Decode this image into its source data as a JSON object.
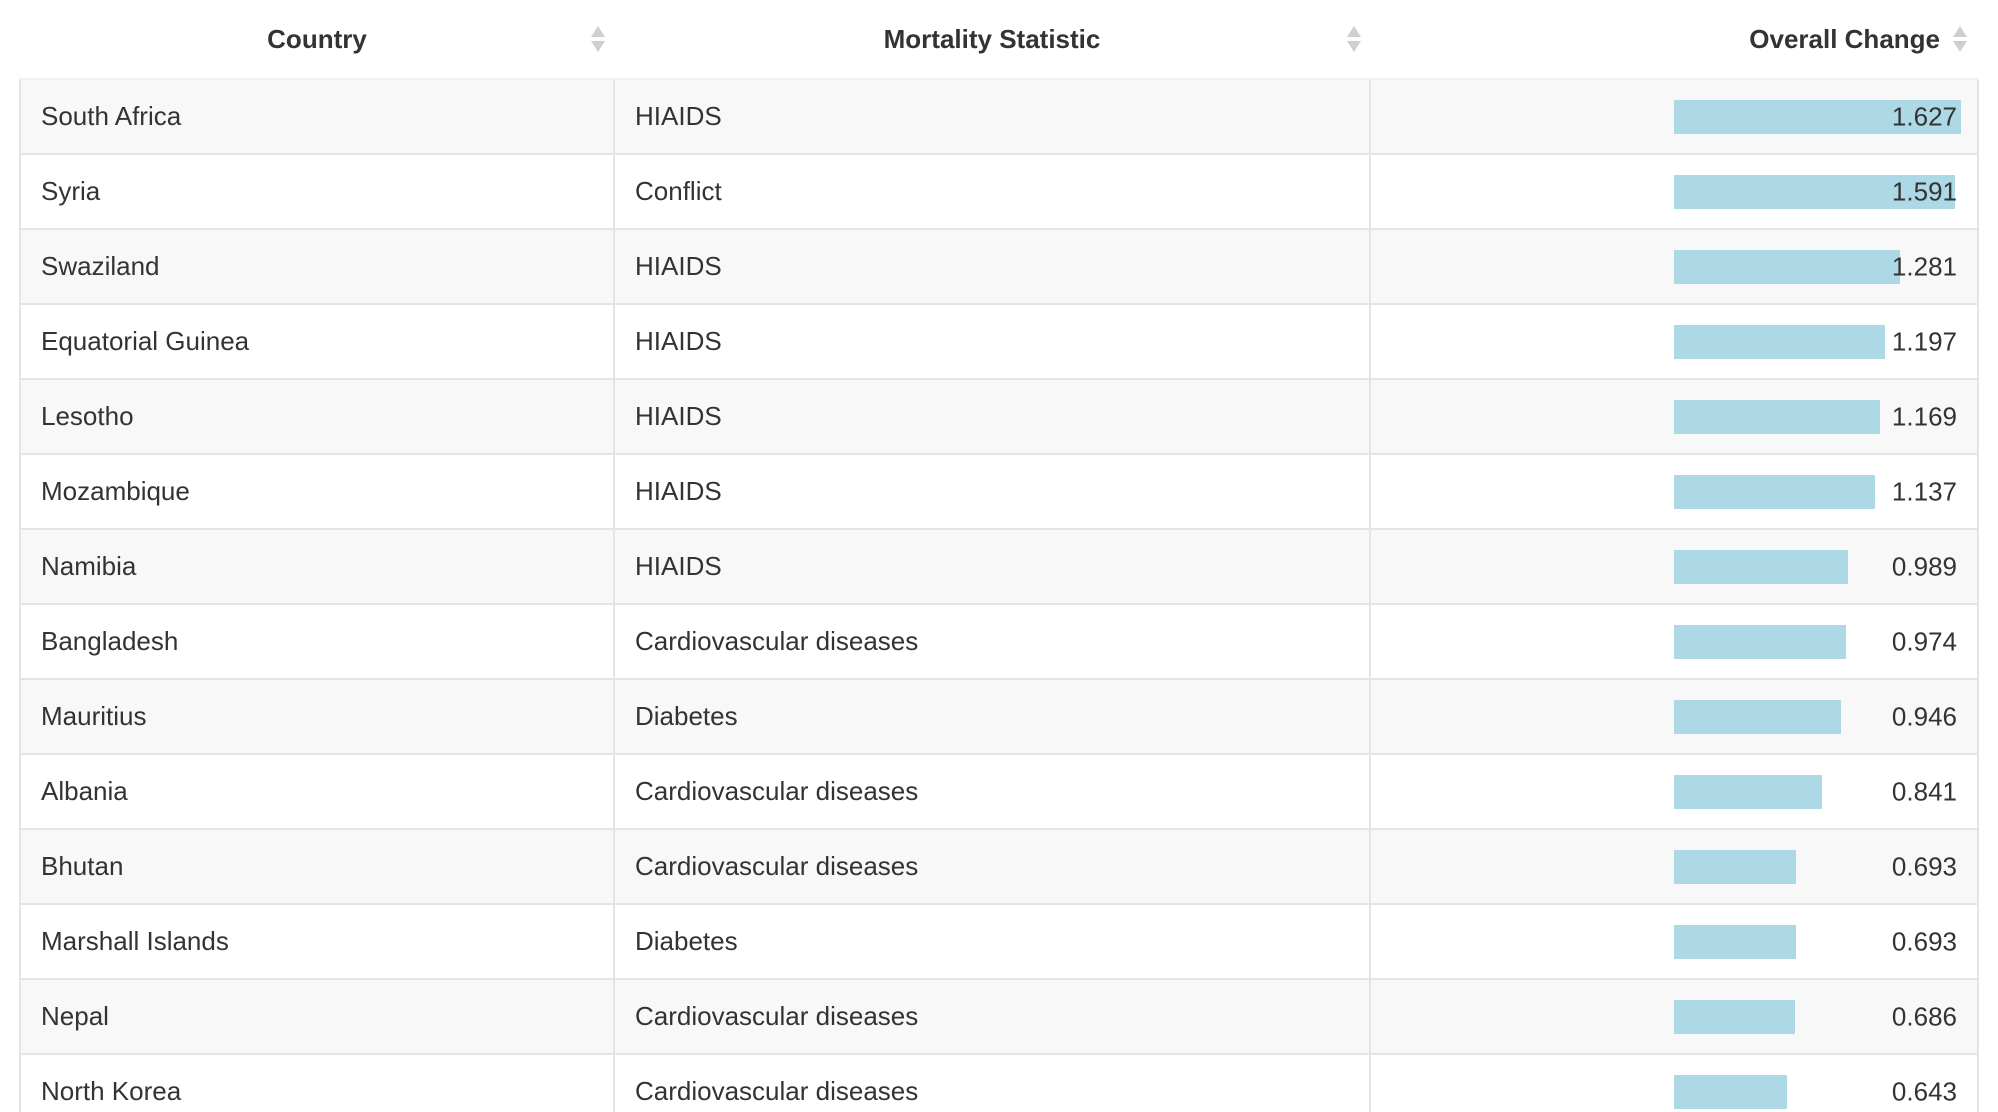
{
  "table": {
    "columns": [
      {
        "label": "Country"
      },
      {
        "label": "Mortality Statistic"
      },
      {
        "label": "Overall Change"
      }
    ],
    "bar_color": "#add8e6",
    "bar_max": 1.627,
    "rows": [
      {
        "country": "South Africa",
        "statistic": "HIAIDS",
        "change": "1.627"
      },
      {
        "country": "Syria",
        "statistic": "Conflict",
        "change": "1.591"
      },
      {
        "country": "Swaziland",
        "statistic": "HIAIDS",
        "change": "1.281"
      },
      {
        "country": "Equatorial Guinea",
        "statistic": "HIAIDS",
        "change": "1.197"
      },
      {
        "country": "Lesotho",
        "statistic": "HIAIDS",
        "change": "1.169"
      },
      {
        "country": "Mozambique",
        "statistic": "HIAIDS",
        "change": "1.137"
      },
      {
        "country": "Namibia",
        "statistic": "HIAIDS",
        "change": "0.989"
      },
      {
        "country": "Bangladesh",
        "statistic": "Cardiovascular diseases",
        "change": "0.974"
      },
      {
        "country": "Mauritius",
        "statistic": "Diabetes",
        "change": "0.946"
      },
      {
        "country": "Albania",
        "statistic": "Cardiovascular diseases",
        "change": "0.841"
      },
      {
        "country": "Bhutan",
        "statistic": "Cardiovascular diseases",
        "change": "0.693"
      },
      {
        "country": "Marshall Islands",
        "statistic": "Diabetes",
        "change": "0.693"
      },
      {
        "country": "Nepal",
        "statistic": "Cardiovascular diseases",
        "change": "0.686"
      },
      {
        "country": "North Korea",
        "statistic": "Cardiovascular diseases",
        "change": "0.643"
      }
    ]
  }
}
